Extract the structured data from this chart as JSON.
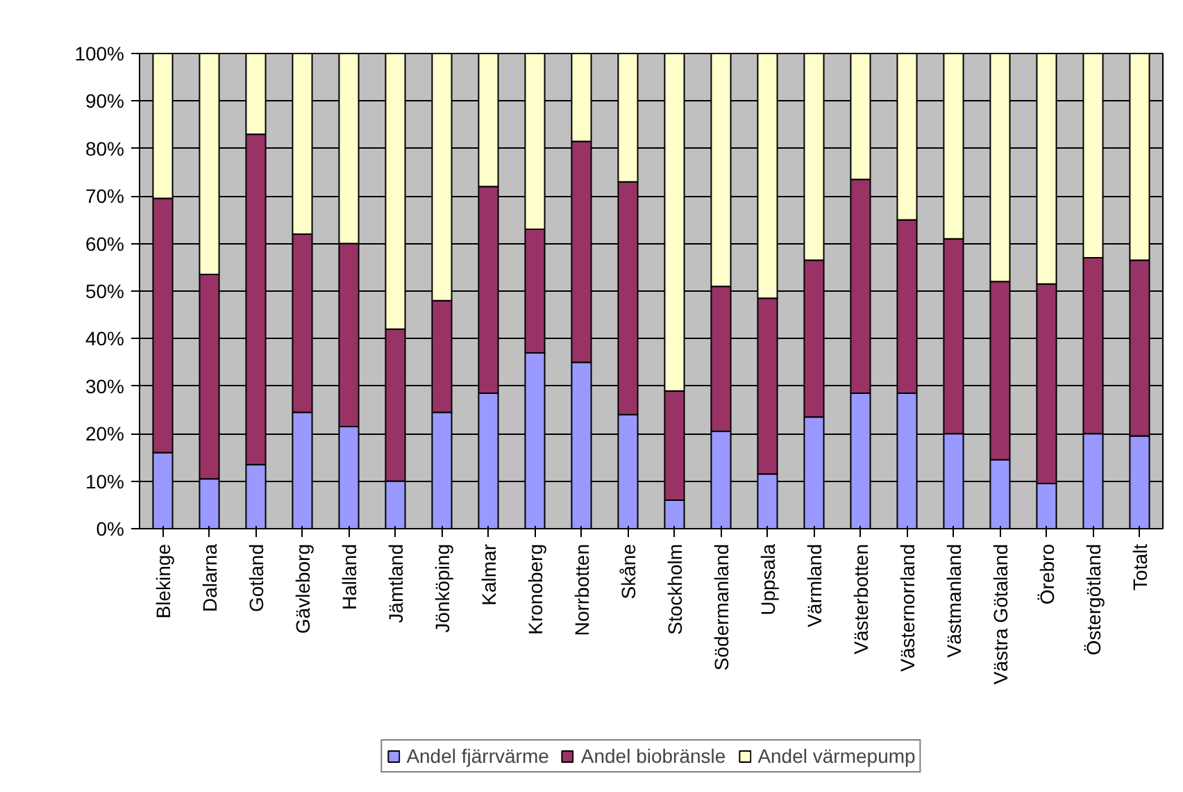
{
  "chart_data": {
    "type": "bar",
    "stacked": true,
    "categories": [
      "Blekinge",
      "Dalarna",
      "Gotland",
      "Gävleborg",
      "Halland",
      "Jämtland",
      "Jönköping",
      "Kalmar",
      "Kronoberg",
      "Norrbotten",
      "Skåne",
      "Stockholm",
      "Södermanland",
      "Uppsala",
      "Värmland",
      "Västerbotten",
      "Västernorrland",
      "Västmanland",
      "Västra Götaland",
      "Örebro",
      "Östergötland",
      "Totalt"
    ],
    "series": [
      {
        "name": "Andel fjärrvärme",
        "color": "#9999ff",
        "values": [
          16,
          10.5,
          13.5,
          24.5,
          21.5,
          10,
          24.5,
          28.5,
          37,
          35,
          24,
          6,
          20.5,
          11.5,
          23.5,
          28.5,
          28.5,
          20,
          14.5,
          9.5,
          20,
          19.5
        ]
      },
      {
        "name": "Andel biobränsle",
        "color": "#993366",
        "values": [
          53.5,
          43,
          69.5,
          37.5,
          38.5,
          32,
          23.5,
          43.5,
          26,
          46.5,
          49,
          23,
          30.5,
          37,
          33,
          45,
          36.5,
          41,
          37.5,
          42,
          37,
          37
        ]
      },
      {
        "name": "Andel värmepump",
        "color": "#ffffcc",
        "values": [
          30.5,
          46.5,
          17,
          38,
          40,
          58,
          52,
          28,
          37,
          18.5,
          27,
          71,
          49,
          51.5,
          43.5,
          26.5,
          35,
          39,
          48,
          48.5,
          43,
          43.5
        ]
      }
    ],
    "ylim": [
      0,
      100
    ],
    "yticks": [
      {
        "value": 0,
        "label": "0%"
      },
      {
        "value": 10,
        "label": "10%"
      },
      {
        "value": 20,
        "label": "20%"
      },
      {
        "value": 30,
        "label": "30%"
      },
      {
        "value": 40,
        "label": "40%"
      },
      {
        "value": 50,
        "label": "50%"
      },
      {
        "value": 60,
        "label": "60%"
      },
      {
        "value": 70,
        "label": "70%"
      },
      {
        "value": 80,
        "label": "80%"
      },
      {
        "value": 90,
        "label": "90%"
      },
      {
        "value": 100,
        "label": "100%"
      }
    ],
    "grid": "y",
    "legend": "bottom"
  }
}
